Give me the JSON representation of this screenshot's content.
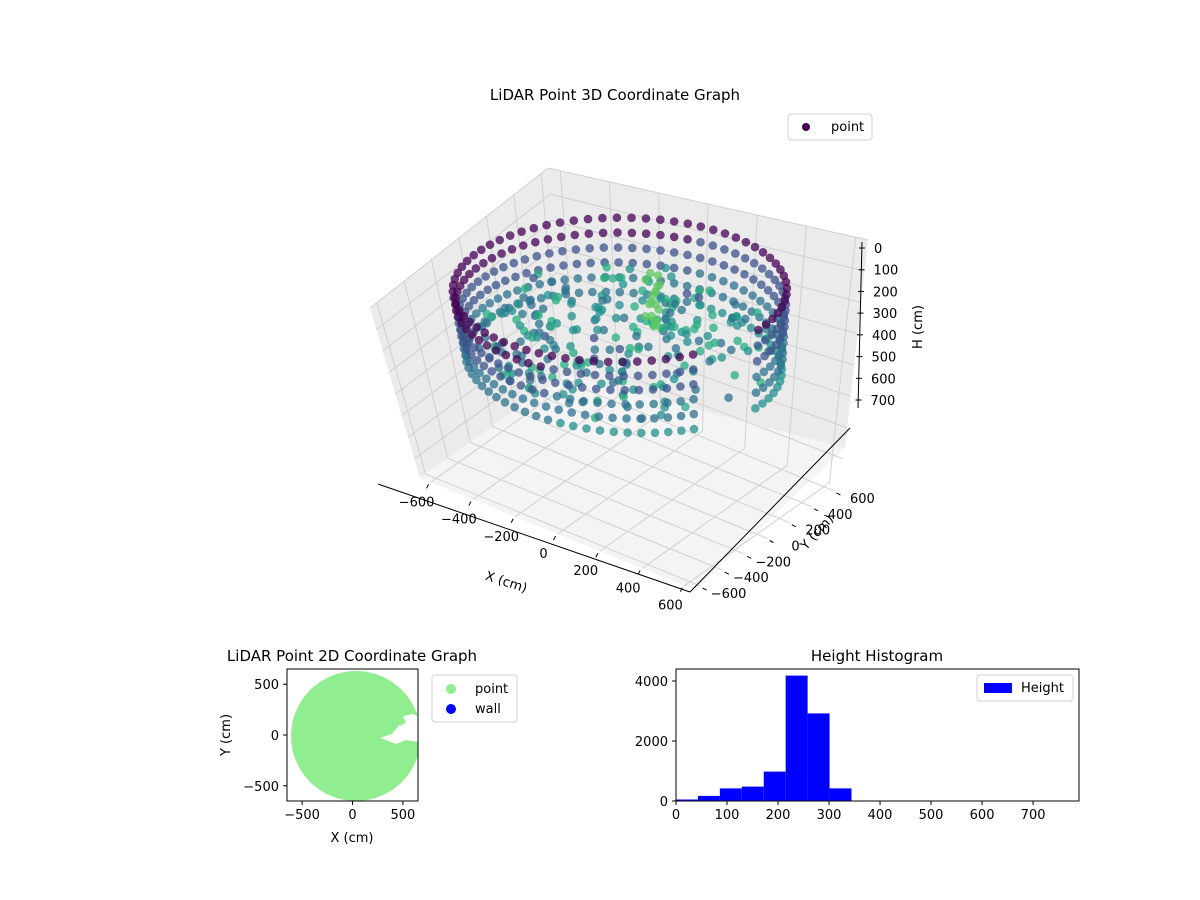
{
  "chart_data": [
    {
      "type": "scatter",
      "projection": "3d",
      "title": "LiDAR Point 3D Coordinate Graph",
      "xlabel": "X (cm)",
      "ylabel": "Y (cm)",
      "zlabel": "H (cm)",
      "xlim": [
        -650,
        650
      ],
      "ylim": [
        -650,
        650
      ],
      "zlim": [
        790,
        0
      ],
      "z_inverted": true,
      "xticks": [
        "−600",
        "−400",
        "−200",
        "0",
        "200",
        "400",
        "600"
      ],
      "yticks": [
        "−600",
        "−400",
        "−200",
        "0",
        "200",
        "400",
        "600"
      ],
      "zticks": [
        "0",
        "100",
        "200",
        "300",
        "400",
        "500",
        "600",
        "700"
      ],
      "legend": {
        "entries": [
          {
            "label": "point",
            "color": "#440154"
          }
        ],
        "placement": "upper-right"
      },
      "colormap": "viridis",
      "grid": true,
      "description_points": {
        "wall_ring": {
          "radius": 600,
          "height_range": [
            50,
            350
          ]
        },
        "interior_cluster": {
          "height_range": [
            200,
            300
          ]
        }
      }
    },
    {
      "type": "scatter",
      "title": "LiDAR Point 2D Coordinate Graph",
      "xlabel": "X (cm)",
      "ylabel": "Y (cm)",
      "xlim": [
        -650,
        650
      ],
      "ylim": [
        -650,
        650
      ],
      "xticks": [
        "−500",
        "0",
        "500"
      ],
      "yticks": [
        "−500",
        "0",
        "500"
      ],
      "series": [
        {
          "name": "point",
          "color": "#90ee90"
        },
        {
          "name": "wall",
          "color": "#0000ff"
        }
      ],
      "legend_placement": "outside-right"
    },
    {
      "type": "bar",
      "title": "Height Histogram",
      "xlabel": "",
      "ylabel": "",
      "xlim": [
        0,
        790
      ],
      "ylim": [
        0,
        4400
      ],
      "xticks": [
        "0",
        "100",
        "200",
        "300",
        "400",
        "500",
        "600",
        "700"
      ],
      "yticks": [
        "0",
        "2000",
        "4000"
      ],
      "bin_width": 43,
      "bins": [
        {
          "x0": 0,
          "value": 50
        },
        {
          "x0": 43,
          "value": 170
        },
        {
          "x0": 86,
          "value": 420
        },
        {
          "x0": 129,
          "value": 480
        },
        {
          "x0": 172,
          "value": 980
        },
        {
          "x0": 215,
          "value": 4180
        },
        {
          "x0": 258,
          "value": 2920
        },
        {
          "x0": 301,
          "value": 420
        },
        {
          "x0": 344,
          "value": 8
        },
        {
          "x0": 387,
          "value": 4
        },
        {
          "x0": 430,
          "value": 3
        },
        {
          "x0": 473,
          "value": 2
        },
        {
          "x0": 516,
          "value": 2
        },
        {
          "x0": 559,
          "value": 1
        },
        {
          "x0": 602,
          "value": 1
        },
        {
          "x0": 645,
          "value": 1
        },
        {
          "x0": 688,
          "value": 1
        },
        {
          "x0": 731,
          "value": 1
        }
      ],
      "series": [
        {
          "name": "Height",
          "color": "#0000ff"
        }
      ],
      "legend_placement": "upper-right"
    }
  ]
}
